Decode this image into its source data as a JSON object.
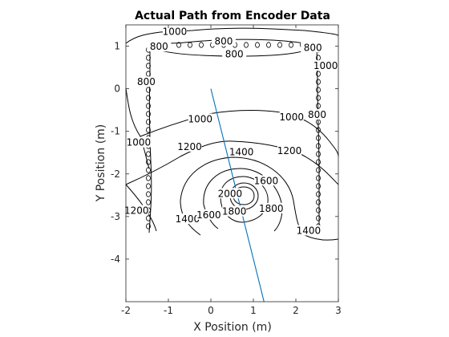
{
  "chart_data": {
    "type": "line",
    "title": "Actual Path from Encoder Data",
    "xlabel": "X Position (m)",
    "ylabel": "Y Position (m)",
    "xlim": [
      -2,
      3
    ],
    "ylim": [
      -5,
      1.5
    ],
    "xticks": [
      "-2",
      "-1",
      "0",
      "1",
      "2",
      "3"
    ],
    "yticks": [
      "1",
      "0",
      "-1",
      "-2",
      "-3",
      "-4"
    ],
    "series": [
      {
        "x": [
          0,
          1.25
        ],
        "y": [
          0,
          -5
        ],
        "color": "#0072BD"
      }
    ],
    "contour_levels": [
      {
        "level": 800,
        "labels": [
          {
            "text": "800",
            "x": -1.22,
            "y": 0.95
          },
          {
            "text": "800",
            "x": 0.3,
            "y": 1.08
          },
          {
            "text": "800",
            "x": 0.55,
            "y": 0.77
          },
          {
            "text": "800",
            "x": 2.4,
            "y": 0.93
          },
          {
            "text": "800",
            "x": -1.52,
            "y": 0.12
          },
          {
            "text": "800",
            "x": 2.5,
            "y": -0.65
          }
        ]
      },
      {
        "level": 1000,
        "labels": [
          {
            "text": "1000",
            "x": -0.85,
            "y": 1.3
          },
          {
            "text": "1000",
            "x": 2.7,
            "y": 0.5
          },
          {
            "text": "1000",
            "x": -1.7,
            "y": -1.3
          },
          {
            "text": "1000",
            "x": -0.25,
            "y": -0.75
          },
          {
            "text": "1000",
            "x": 1.9,
            "y": -0.7
          }
        ]
      },
      {
        "level": 1200,
        "labels": [
          {
            "text": "1200",
            "x": -0.5,
            "y": -1.4
          },
          {
            "text": "1200",
            "x": 1.85,
            "y": -1.5
          },
          {
            "text": "1200",
            "x": -1.75,
            "y": -2.9
          }
        ]
      },
      {
        "level": 1400,
        "labels": [
          {
            "text": "1400",
            "x": 0.72,
            "y": -1.52
          },
          {
            "text": "1400",
            "x": -0.55,
            "y": -3.1
          },
          {
            "text": "1400",
            "x": 2.3,
            "y": -3.37
          }
        ]
      },
      {
        "level": 1600,
        "labels": [
          {
            "text": "1600",
            "x": 1.3,
            "y": -2.2
          },
          {
            "text": "1600",
            "x": -0.05,
            "y": -3.0
          }
        ]
      },
      {
        "level": 1800,
        "labels": [
          {
            "text": "1800",
            "x": 1.42,
            "y": -2.85
          },
          {
            "text": "1800",
            "x": 0.55,
            "y": -2.92
          }
        ]
      },
      {
        "level": 2000,
        "labels": [
          {
            "text": "2000",
            "x": 0.45,
            "y": -2.5
          }
        ]
      }
    ],
    "grid": false,
    "legend": "none"
  }
}
